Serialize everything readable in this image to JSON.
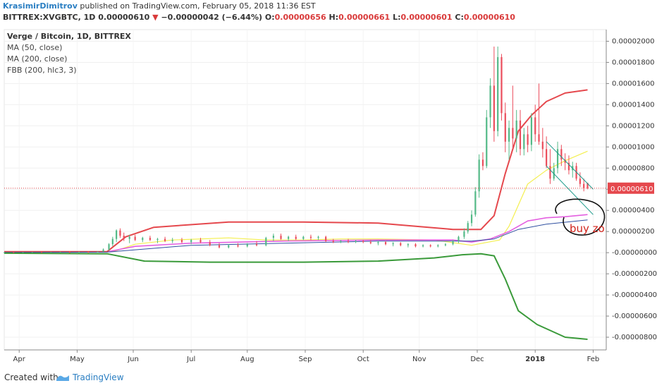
{
  "header": {
    "author": "KrasimirDimitrov",
    "published_text": "published on TradingView.com, February 05, 2018 11:36 EST",
    "symbol": "BITTREX:XVGBTC, 1D",
    "last": "0.00000610",
    "change": "−0.00000042 (−6.44%)",
    "o_label": "O:",
    "o_value": "0.00000656",
    "h_label": "H:",
    "h_value": "0.00000661",
    "l_label": "L:",
    "l_value": "0.00000601",
    "c_label": "C:",
    "c_value": "0.00000610"
  },
  "legend": {
    "title": "Verge / Bitcoin, 1D, BITTREX",
    "items": [
      "MA (50, close)",
      "MA (200, close)",
      "FBB (200, hlc3, 3)"
    ]
  },
  "annotation": {
    "text": "buy zo"
  },
  "footer": {
    "created": "Created with",
    "brand": "TradingView"
  },
  "colors": {
    "up": "#53b987",
    "down": "#eb4d5c",
    "fbb_upper": "#e5484d",
    "fbb_lower": "#3a9a3a",
    "ma50": "#f4ef4f",
    "ma200": "#e45fe0",
    "fbb_basis": "#2f4fa0",
    "channel": "#1a9a8a",
    "price_line": "#e5484d"
  },
  "chart_data": {
    "type": "candlestick",
    "title": "Verge / Bitcoin, 1D, BITTREX",
    "last_price": 6.1e-06,
    "last_price_label": "0.00000610",
    "ylim": [
      -9.2e-06,
      2.11e-05
    ],
    "y_ticks": [
      "0.00002000",
      "0.00001800",
      "0.00001600",
      "0.00001400",
      "0.00001200",
      "0.00001000",
      "0.00000800",
      "0.00000600",
      "0.00000400",
      "0.00000200",
      "-0.00000000",
      "-0.00000200",
      "-0.00000400",
      "-0.00000600",
      "-0.00000800"
    ],
    "x_ticks": [
      "Apr",
      "May",
      "Jun",
      "Jul",
      "Aug",
      "Sep",
      "Oct",
      "Nov",
      "Dec",
      "2018",
      "Feb"
    ],
    "series": [
      {
        "name": "MA (50, close)",
        "x": [
          0,
          55,
          60,
          70,
          90,
          120,
          140,
          160,
          180,
          200,
          230,
          250,
          265,
          270,
          275,
          280,
          290,
          300,
          312
        ],
        "values": [
          5e-08,
          6e-08,
          2e-07,
          8e-07,
          1.2e-06,
          1.4e-06,
          1.2e-06,
          1.2e-06,
          1.3e-06,
          1.3e-06,
          1.2e-06,
          7e-07,
          1.2e-06,
          2.5e-06,
          4.5e-06,
          6.5e-06,
          7.8e-06,
          8.7e-06,
          9.6e-06
        ]
      },
      {
        "name": "MA (200, close)",
        "x": [
          0,
          55,
          70,
          100,
          150,
          200,
          240,
          250,
          260,
          270,
          280,
          290,
          300,
          312
        ],
        "values": [
          4e-08,
          8e-08,
          6e-07,
          9e-07,
          1.1e-06,
          1.2e-06,
          1.2e-06,
          1e-06,
          1.3e-06,
          2e-06,
          3e-06,
          3.3e-06,
          3.4e-06,
          3.6e-06
        ]
      },
      {
        "name": "FBB upper",
        "x": [
          0,
          55,
          65,
          80,
          120,
          160,
          200,
          240,
          255,
          262,
          268,
          275,
          282,
          290,
          300,
          312
        ],
        "values": [
          1e-07,
          1e-07,
          1.5e-06,
          2.4e-06,
          2.9e-06,
          2.9e-06,
          2.8e-06,
          2.2e-06,
          2.2e-06,
          3.5e-06,
          7.5e-06,
          1.15e-05,
          1.3e-05,
          1.43e-05,
          1.51e-05,
          1.54e-05
        ]
      },
      {
        "name": "FBB basis",
        "x": [
          0,
          55,
          100,
          200,
          250,
          262,
          275,
          290,
          312
        ],
        "values": [
          3e-08,
          5e-08,
          7e-07,
          1.1e-06,
          1.1e-06,
          1.3e-06,
          2.2e-06,
          2.7e-06,
          3.1e-06
        ]
      },
      {
        "name": "FBB lower",
        "x": [
          0,
          55,
          75,
          110,
          160,
          200,
          230,
          245,
          255,
          262,
          268,
          275,
          285,
          300,
          312
        ],
        "values": [
          -5e-08,
          -1e-07,
          -8e-07,
          -9e-07,
          -9e-07,
          -8e-07,
          -5e-07,
          -2e-07,
          -1e-07,
          -3e-07,
          -2.5e-06,
          -5.5e-06,
          -6.8e-06,
          -8e-06,
          -8.2e-06
        ]
      }
    ],
    "candles": [
      {
        "i": 0,
        "o": 2e-08,
        "h": 4e-08,
        "l": 0.0,
        "c": 3e-08
      },
      {
        "i": 5,
        "o": 3e-08,
        "h": 5e-08,
        "l": 1e-08,
        "c": 2e-08
      },
      {
        "i": 10,
        "o": 2e-08,
        "h": 4e-08,
        "l": 1e-08,
        "c": 3e-08
      },
      {
        "i": 15,
        "o": 3e-08,
        "h": 5e-08,
        "l": 2e-08,
        "c": 4e-08
      },
      {
        "i": 20,
        "o": 4e-08,
        "h": 6e-08,
        "l": 2e-08,
        "c": 3e-08
      },
      {
        "i": 25,
        "o": 3e-08,
        "h": 5e-08,
        "l": 2e-08,
        "c": 4e-08
      },
      {
        "i": 30,
        "o": 4e-08,
        "h": 7e-08,
        "l": 3e-08,
        "c": 5e-08
      },
      {
        "i": 35,
        "o": 5e-08,
        "h": 8e-08,
        "l": 3e-08,
        "c": 4e-08
      },
      {
        "i": 40,
        "o": 4e-08,
        "h": 8e-08,
        "l": 3e-08,
        "c": 6e-08
      },
      {
        "i": 45,
        "o": 6e-08,
        "h": 9e-08,
        "l": 4e-08,
        "c": 5e-08
      },
      {
        "i": 50,
        "o": 5e-08,
        "h": 1.2e-07,
        "l": 4e-08,
        "c": 1e-07
      },
      {
        "i": 53,
        "o": 1e-07,
        "h": 4e-07,
        "l": 8e-08,
        "c": 3e-07
      },
      {
        "i": 56,
        "o": 3e-07,
        "h": 9e-07,
        "l": 2e-07,
        "c": 8e-07
      },
      {
        "i": 58,
        "o": 8e-07,
        "h": 1.5e-06,
        "l": 6e-07,
        "c": 1.3e-06
      },
      {
        "i": 60,
        "o": 1.3e-06,
        "h": 2.2e-06,
        "l": 1e-06,
        "c": 2.1e-06
      },
      {
        "i": 62,
        "o": 2.1e-06,
        "h": 2.3e-06,
        "l": 1.4e-06,
        "c": 1.6e-06
      },
      {
        "i": 64,
        "o": 1.6e-06,
        "h": 1.9e-06,
        "l": 1.1e-06,
        "c": 1.3e-06
      },
      {
        "i": 67,
        "o": 1.3e-06,
        "h": 1.7e-06,
        "l": 9e-07,
        "c": 1.5e-06
      },
      {
        "i": 70,
        "o": 1.5e-06,
        "h": 1.7e-06,
        "l": 1.1e-06,
        "c": 1.2e-06
      },
      {
        "i": 74,
        "o": 1.2e-06,
        "h": 1.5e-06,
        "l": 1e-06,
        "c": 1.4e-06
      },
      {
        "i": 78,
        "o": 1.4e-06,
        "h": 1.6e-06,
        "l": 1.1e-06,
        "c": 1.2e-06
      },
      {
        "i": 82,
        "o": 1.2e-06,
        "h": 1.4e-06,
        "l": 9e-07,
        "c": 1.3e-06
      },
      {
        "i": 86,
        "o": 1.3e-06,
        "h": 1.5e-06,
        "l": 1e-06,
        "c": 1.1e-06
      },
      {
        "i": 90,
        "o": 1.1e-06,
        "h": 1.4e-06,
        "l": 9e-07,
        "c": 1.2e-06
      },
      {
        "i": 95,
        "o": 1.2e-06,
        "h": 1.4e-06,
        "l": 9e-07,
        "c": 1e-06
      },
      {
        "i": 100,
        "o": 1e-06,
        "h": 1.3e-06,
        "l": 8e-07,
        "c": 1.2e-06
      },
      {
        "i": 105,
        "o": 1.2e-06,
        "h": 1.4e-06,
        "l": 9e-07,
        "c": 1e-06
      },
      {
        "i": 110,
        "o": 1e-06,
        "h": 1.2e-06,
        "l": 6e-07,
        "c": 7e-07
      },
      {
        "i": 115,
        "o": 7e-07,
        "h": 9e-07,
        "l": 4e-07,
        "c": 5e-07
      },
      {
        "i": 120,
        "o": 5e-07,
        "h": 8e-07,
        "l": 4e-07,
        "c": 7e-07
      },
      {
        "i": 125,
        "o": 7e-07,
        "h": 9e-07,
        "l": 5e-07,
        "c": 6e-07
      },
      {
        "i": 130,
        "o": 6e-07,
        "h": 9e-07,
        "l": 5e-07,
        "c": 8e-07
      },
      {
        "i": 135,
        "o": 8e-07,
        "h": 1.1e-06,
        "l": 6e-07,
        "c": 7e-07
      },
      {
        "i": 140,
        "o": 7e-07,
        "h": 1.5e-06,
        "l": 6e-07,
        "c": 1.4e-06
      },
      {
        "i": 144,
        "o": 1.4e-06,
        "h": 1.8e-06,
        "l": 1.1e-06,
        "c": 1.6e-06
      },
      {
        "i": 148,
        "o": 1.6e-06,
        "h": 1.8e-06,
        "l": 1.2e-06,
        "c": 1.3e-06
      },
      {
        "i": 152,
        "o": 1.3e-06,
        "h": 1.6e-06,
        "l": 1.1e-06,
        "c": 1.5e-06
      },
      {
        "i": 156,
        "o": 1.5e-06,
        "h": 1.7e-06,
        "l": 1.2e-06,
        "c": 1.3e-06
      },
      {
        "i": 160,
        "o": 1.3e-06,
        "h": 1.6e-06,
        "l": 1.2e-06,
        "c": 1.5e-06
      },
      {
        "i": 164,
        "o": 1.5e-06,
        "h": 1.7e-06,
        "l": 1.2e-06,
        "c": 1.4e-06
      },
      {
        "i": 168,
        "o": 1.4e-06,
        "h": 1.6e-06,
        "l": 1.2e-06,
        "c": 1.5e-06
      },
      {
        "i": 172,
        "o": 1.5e-06,
        "h": 1.6e-06,
        "l": 1e-06,
        "c": 1.1e-06
      },
      {
        "i": 176,
        "o": 1.1e-06,
        "h": 1.3e-06,
        "l": 9e-07,
        "c": 1e-06
      },
      {
        "i": 180,
        "o": 1e-06,
        "h": 1.2e-06,
        "l": 9e-07,
        "c": 1.1e-06
      },
      {
        "i": 184,
        "o": 1.1e-06,
        "h": 1.3e-06,
        "l": 9e-07,
        "c": 1e-06
      },
      {
        "i": 188,
        "o": 1e-06,
        "h": 1.2e-06,
        "l": 9e-07,
        "c": 1.1e-06
      },
      {
        "i": 192,
        "o": 1.1e-06,
        "h": 1.2e-06,
        "l": 9e-07,
        "c": 1e-06
      },
      {
        "i": 196,
        "o": 1e-06,
        "h": 1.2e-06,
        "l": 8e-07,
        "c": 9e-07
      },
      {
        "i": 200,
        "o": 9e-07,
        "h": 1.1e-06,
        "l": 7e-07,
        "c": 1e-06
      },
      {
        "i": 204,
        "o": 1e-06,
        "h": 1.1e-06,
        "l": 7e-07,
        "c": 8e-07
      },
      {
        "i": 208,
        "o": 8e-07,
        "h": 1e-06,
        "l": 6e-07,
        "c": 9e-07
      },
      {
        "i": 212,
        "o": 9e-07,
        "h": 1e-06,
        "l": 6e-07,
        "c": 7e-07
      },
      {
        "i": 216,
        "o": 7e-07,
        "h": 9e-07,
        "l": 5e-07,
        "c": 8e-07
      },
      {
        "i": 220,
        "o": 8e-07,
        "h": 9e-07,
        "l": 5e-07,
        "c": 6e-07
      },
      {
        "i": 224,
        "o": 6e-07,
        "h": 8e-07,
        "l": 5e-07,
        "c": 7e-07
      },
      {
        "i": 228,
        "o": 7e-07,
        "h": 8e-07,
        "l": 5e-07,
        "c": 6e-07
      },
      {
        "i": 232,
        "o": 6e-07,
        "h": 8e-07,
        "l": 5e-07,
        "c": 7e-07
      },
      {
        "i": 236,
        "o": 7e-07,
        "h": 9e-07,
        "l": 6e-07,
        "c": 8e-07
      },
      {
        "i": 240,
        "o": 8e-07,
        "h": 1.2e-06,
        "l": 7e-07,
        "c": 1.1e-06
      },
      {
        "i": 243,
        "o": 1.1e-06,
        "h": 1.6e-06,
        "l": 9e-07,
        "c": 1.5e-06
      },
      {
        "i": 246,
        "o": 1.5e-06,
        "h": 2.3e-06,
        "l": 1.3e-06,
        "c": 2e-06
      },
      {
        "i": 248,
        "o": 2e-06,
        "h": 3e-06,
        "l": 1.8e-06,
        "c": 2.8e-06
      },
      {
        "i": 250,
        "o": 2.8e-06,
        "h": 4e-06,
        "l": 2.5e-06,
        "c": 3.6e-06
      },
      {
        "i": 252,
        "o": 3.6e-06,
        "h": 6.2e-06,
        "l": 3.4e-06,
        "c": 5.8e-06
      },
      {
        "i": 254,
        "o": 5.8e-06,
        "h": 9.3e-06,
        "l": 5.2e-06,
        "c": 8.8e-06
      },
      {
        "i": 256,
        "o": 8.8e-06,
        "h": 9.5e-06,
        "l": 7.8e-06,
        "c": 8.2e-06
      },
      {
        "i": 258,
        "o": 8.2e-06,
        "h": 1.35e-05,
        "l": 8e-06,
        "c": 1.28e-05
      },
      {
        "i": 260,
        "o": 1.28e-05,
        "h": 1.65e-05,
        "l": 1.18e-05,
        "c": 1.58e-05
      },
      {
        "i": 262,
        "o": 1.58e-05,
        "h": 1.95e-05,
        "l": 1.05e-05,
        "c": 1.15e-05
      },
      {
        "i": 264,
        "o": 1.15e-05,
        "h": 1.95e-05,
        "l": 1.1e-05,
        "c": 1.85e-05
      },
      {
        "i": 266,
        "o": 1.85e-05,
        "h": 1.88e-05,
        "l": 1.25e-05,
        "c": 1.32e-05
      },
      {
        "i": 268,
        "o": 1.32e-05,
        "h": 1.42e-05,
        "l": 9.5e-06,
        "c": 1.05e-05
      },
      {
        "i": 270,
        "o": 1.05e-05,
        "h": 1.25e-05,
        "l": 8.8e-06,
        "c": 1.18e-05
      },
      {
        "i": 272,
        "o": 1.18e-05,
        "h": 1.58e-05,
        "l": 9.8e-06,
        "c": 1.08e-05
      },
      {
        "i": 274,
        "o": 1.08e-05,
        "h": 1.35e-05,
        "l": 9.5e-06,
        "c": 1.25e-05
      },
      {
        "i": 276,
        "o": 1.25e-05,
        "h": 1.35e-05,
        "l": 9.2e-06,
        "c": 9.8e-06
      },
      {
        "i": 278,
        "o": 9.8e-06,
        "h": 1.18e-05,
        "l": 9.2e-06,
        "c": 1.12e-05
      },
      {
        "i": 280,
        "o": 1.12e-05,
        "h": 1.2e-05,
        "l": 9.5e-06,
        "c": 1.02e-05
      },
      {
        "i": 282,
        "o": 1.02e-05,
        "h": 1.32e-05,
        "l": 9.6e-06,
        "c": 1.28e-05
      },
      {
        "i": 284,
        "o": 1.28e-05,
        "h": 1.4e-05,
        "l": 1.05e-05,
        "c": 1.12e-05
      },
      {
        "i": 286,
        "o": 1.12e-05,
        "h": 1.6e-05,
        "l": 1.02e-05,
        "c": 1.05e-05
      },
      {
        "i": 288,
        "o": 1.05e-05,
        "h": 1.18e-05,
        "l": 9e-06,
        "c": 9.8e-06
      },
      {
        "i": 290,
        "o": 9.8e-06,
        "h": 1.1e-05,
        "l": 8e-06,
        "c": 8.2e-06
      },
      {
        "i": 292,
        "o": 8.2e-06,
        "h": 9.8e-06,
        "l": 6.5e-06,
        "c": 7e-06
      },
      {
        "i": 294,
        "o": 7e-06,
        "h": 8.5e-06,
        "l": 6.8e-06,
        "c": 8e-06
      },
      {
        "i": 296,
        "o": 8e-06,
        "h": 1.05e-05,
        "l": 7.5e-06,
        "c": 9.8e-06
      },
      {
        "i": 298,
        "o": 9.8e-06,
        "h": 1.02e-05,
        "l": 8.2e-06,
        "c": 8.8e-06
      },
      {
        "i": 300,
        "o": 8.8e-06,
        "h": 9.4e-06,
        "l": 7.8e-06,
        "c": 8.5e-06
      },
      {
        "i": 302,
        "o": 8.5e-06,
        "h": 9.2e-06,
        "l": 7.4e-06,
        "c": 7.8e-06
      },
      {
        "i": 304,
        "o": 7.8e-06,
        "h": 8.6e-06,
        "l": 7.1e-06,
        "c": 8.2e-06
      },
      {
        "i": 306,
        "o": 8.2e-06,
        "h": 8.5e-06,
        "l": 6.8e-06,
        "c": 7e-06
      },
      {
        "i": 308,
        "o": 7e-06,
        "h": 7.6e-06,
        "l": 6.2e-06,
        "c": 6.5e-06
      },
      {
        "i": 310,
        "o": 6.5e-06,
        "h": 7e-06,
        "l": 5.8e-06,
        "c": 6.1e-06
      },
      {
        "i": 312,
        "o": 6.6e-06,
        "h": 6.6e-06,
        "l": 6e-06,
        "c": 6.1e-06
      }
    ],
    "channel": {
      "x": [
        290,
        315
      ],
      "upper": [
        1.05e-05,
        6e-06
      ],
      "lower": [
        8.2e-06,
        3.6e-06
      ]
    }
  }
}
